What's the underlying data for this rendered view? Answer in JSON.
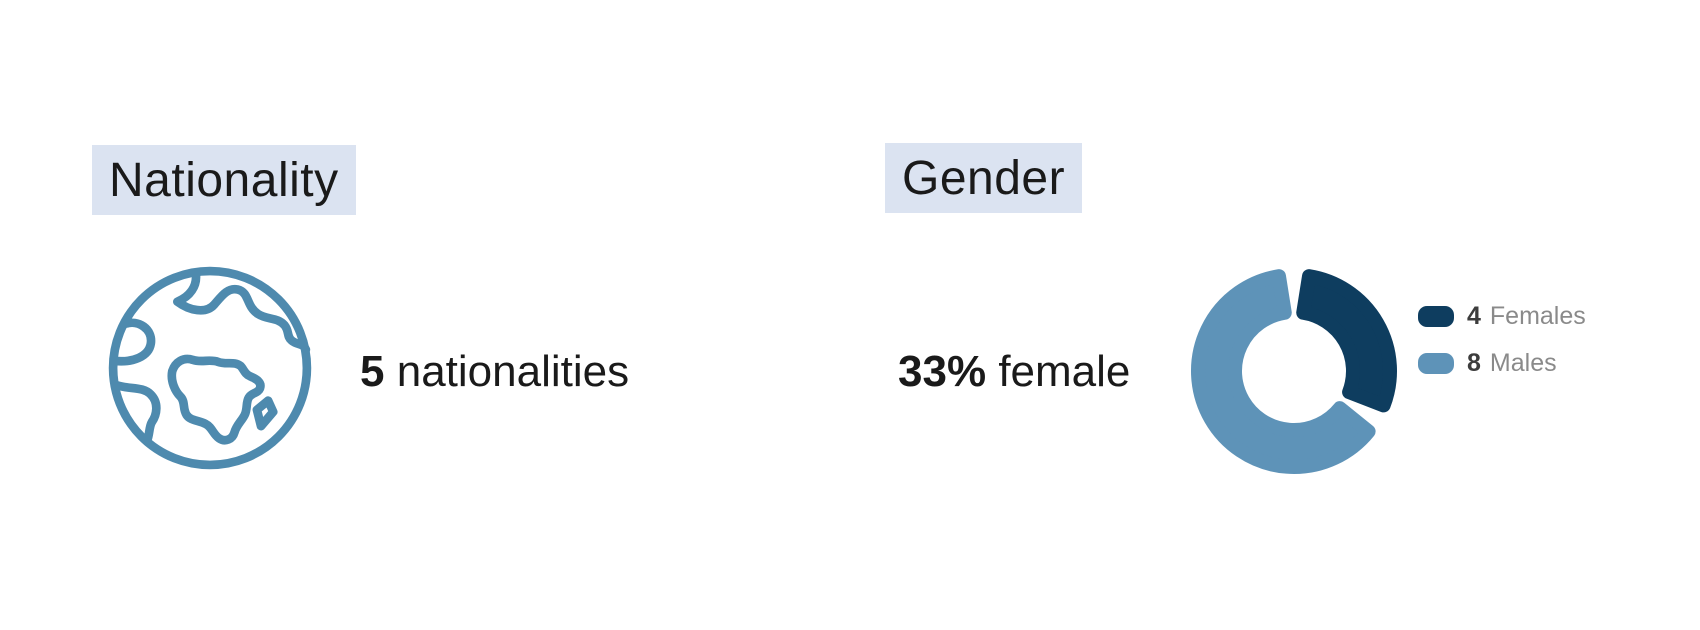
{
  "nationality_card": {
    "heading": "Nationality",
    "stat_value": "5",
    "stat_label": "nationalities",
    "icon": "globe-icon"
  },
  "gender_card": {
    "heading": "Gender",
    "stat_value": "33%",
    "stat_label": "female"
  },
  "chart_data": {
    "type": "pie",
    "variant": "donut",
    "title": "Gender",
    "categories": [
      "Females",
      "Males"
    ],
    "values": [
      4,
      8
    ],
    "colors": [
      "#0e3d5f",
      "#5e93b8"
    ],
    "annotation": "33% female",
    "legend_position": "right",
    "legend": [
      {
        "value": "4",
        "label": "Females"
      },
      {
        "value": "8",
        "label": "Males"
      }
    ],
    "start_angle_deg": 0,
    "direction": "clockwise"
  },
  "theme": {
    "heading_highlight": "#dbe3f1",
    "text_primary": "#1a1a1a",
    "legend_value_color": "#3d3d3d",
    "legend_label_color": "#8a8a8a",
    "globe_stroke": "#4e8aae",
    "background": "#ffffff"
  }
}
